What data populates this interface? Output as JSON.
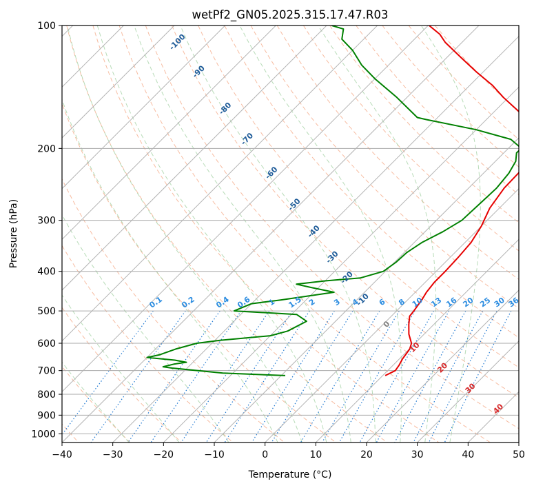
{
  "chart_data": {
    "type": "line",
    "subtype": "skew-t log-p diagram",
    "title": "wetPf2_GN05.2025.315.17.47.R03",
    "xlabel": "Temperature (°C)",
    "ylabel": "Pressure (hPa)",
    "xlim": [
      -40,
      50
    ],
    "ylim": [
      1050,
      100
    ],
    "y_scale": "log",
    "x_ticks": [
      -40,
      -30,
      -20,
      -10,
      0,
      10,
      20,
      30,
      40,
      50
    ],
    "y_ticks": [
      100,
      200,
      300,
      400,
      500,
      600,
      700,
      800,
      900,
      1000
    ],
    "grid": true,
    "series": [
      {
        "role": "temperature",
        "color": "#e60000",
        "points": [
          {
            "p": 720,
            "t": 10.5
          },
          {
            "p": 700,
            "t": 11.5
          },
          {
            "p": 680,
            "t": 11.2
          },
          {
            "p": 655,
            "t": 10.6
          },
          {
            "p": 620,
            "t": 10.1
          },
          {
            "p": 600,
            "t": 9.3
          },
          {
            "p": 570,
            "t": 7.0
          },
          {
            "p": 540,
            "t": 5.1
          },
          {
            "p": 515,
            "t": 3.6
          },
          {
            "p": 500,
            "t": 3.4
          },
          {
            "p": 470,
            "t": 2.8
          },
          {
            "p": 450,
            "t": 2.2
          },
          {
            "p": 425,
            "t": 1.8
          },
          {
            "p": 400,
            "t": 1.8
          },
          {
            "p": 370,
            "t": 1.6
          },
          {
            "p": 340,
            "t": 1.2
          },
          {
            "p": 310,
            "t": 0.0
          },
          {
            "p": 280,
            "t": -1.9
          },
          {
            "p": 250,
            "t": -3.0
          },
          {
            "p": 220,
            "t": -3.2
          },
          {
            "p": 200,
            "t": -4.0
          },
          {
            "p": 190,
            "t": -6.5
          },
          {
            "p": 170,
            "t": -11.8
          },
          {
            "p": 160,
            "t": -16.3
          },
          {
            "p": 150,
            "t": -21.0
          },
          {
            "p": 140,
            "t": -25.6
          },
          {
            "p": 130,
            "t": -31.3
          },
          {
            "p": 120,
            "t": -37.1
          },
          {
            "p": 110,
            "t": -43.3
          },
          {
            "p": 105,
            "t": -46.0
          },
          {
            "p": 100,
            "t": -49.8
          }
        ]
      },
      {
        "role": "dewpoint",
        "color": "#008000",
        "points": [
          {
            "p": 720,
            "t": -9.2
          },
          {
            "p": 710,
            "t": -22.0
          },
          {
            "p": 690,
            "t": -33.0
          },
          {
            "p": 685,
            "t": -35.0
          },
          {
            "p": 675,
            "t": -33.4
          },
          {
            "p": 668,
            "t": -31.3
          },
          {
            "p": 660,
            "t": -34.0
          },
          {
            "p": 650,
            "t": -40.0
          },
          {
            "p": 640,
            "t": -38.0
          },
          {
            "p": 620,
            "t": -36.0
          },
          {
            "p": 600,
            "t": -33.0
          },
          {
            "p": 590,
            "t": -29.0
          },
          {
            "p": 575,
            "t": -20.0
          },
          {
            "p": 560,
            "t": -17.5
          },
          {
            "p": 530,
            "t": -15.7
          },
          {
            "p": 510,
            "t": -19.0
          },
          {
            "p": 500,
            "t": -32.0
          },
          {
            "p": 480,
            "t": -30.0
          },
          {
            "p": 470,
            "t": -25.0
          },
          {
            "p": 450,
            "t": -16.0
          },
          {
            "p": 438,
            "t": -21.5
          },
          {
            "p": 430,
            "t": -25.0
          },
          {
            "p": 422,
            "t": -20.0
          },
          {
            "p": 415,
            "t": -13.6
          },
          {
            "p": 400,
            "t": -10.4
          },
          {
            "p": 380,
            "t": -9.7
          },
          {
            "p": 360,
            "t": -9.5
          },
          {
            "p": 340,
            "t": -8.5
          },
          {
            "p": 320,
            "t": -6.5
          },
          {
            "p": 300,
            "t": -5.0
          },
          {
            "p": 270,
            "t": -4.7
          },
          {
            "p": 250,
            "t": -4.5
          },
          {
            "p": 230,
            "t": -5.0
          },
          {
            "p": 215,
            "t": -6.0
          },
          {
            "p": 205,
            "t": -7.5
          },
          {
            "p": 200,
            "t": -7.4
          },
          {
            "p": 190,
            "t": -11.3
          },
          {
            "p": 180,
            "t": -20.0
          },
          {
            "p": 170,
            "t": -31.8
          },
          {
            "p": 168,
            "t": -34.0
          },
          {
            "p": 150,
            "t": -42.0
          },
          {
            "p": 135,
            "t": -50.0
          },
          {
            "p": 125,
            "t": -55.3
          },
          {
            "p": 115,
            "t": -60.0
          },
          {
            "p": 108,
            "t": -64.3
          },
          {
            "p": 102,
            "t": -66.0
          },
          {
            "p": 100,
            "t": -69.0
          }
        ]
      }
    ],
    "background": {
      "isotherms_c": [
        -140,
        -130,
        -120,
        -110,
        -100,
        -90,
        -80,
        -70,
        -60,
        -50,
        -40,
        -30,
        -20,
        -10,
        0,
        10,
        20,
        30,
        40,
        50
      ],
      "dry_adiabats_c": [
        -50,
        -40,
        -30,
        -20,
        -10,
        0,
        10,
        20,
        30,
        40,
        50,
        60,
        70,
        80,
        90,
        100,
        110,
        120,
        130,
        140,
        150,
        160
      ],
      "moist_adiabats_c": [
        -30,
        -20,
        -10,
        0,
        5,
        10,
        15,
        20,
        25,
        30,
        35
      ],
      "mixing_ratios_g_kg": [
        0.1,
        0.2,
        0.4,
        0.6,
        1,
        1.5,
        2,
        3,
        4,
        6,
        8,
        10,
        13,
        16,
        20,
        25,
        30,
        36
      ],
      "mixing_ratio_labels": [
        "0.1",
        "0.2",
        "0.4",
        "0.6",
        "1",
        "1.5",
        "2",
        "3",
        "4",
        "6",
        "8",
        "10",
        "13",
        "16",
        "20",
        "25",
        "30",
        "36"
      ],
      "frost_point_labels": [
        {
          "text": "-100",
          "p": 110
        },
        {
          "text": "-90",
          "p": 130
        },
        {
          "text": "-80",
          "p": 160
        },
        {
          "text": "-70",
          "p": 190
        },
        {
          "text": "-60",
          "p": 230
        },
        {
          "text": "-50",
          "p": 275
        },
        {
          "text": "-40",
          "p": 320
        },
        {
          "text": "-30",
          "p": 370
        },
        {
          "text": "-20",
          "p": 415
        },
        {
          "text": "-10",
          "p": 470
        }
      ],
      "wetbulb_labels": [
        {
          "text": "0",
          "p": 540,
          "t": 24.0
        },
        {
          "text": "10",
          "p": 615,
          "t": 29.5
        },
        {
          "text": "20",
          "p": 690,
          "t": 35.0
        },
        {
          "text": "30",
          "p": 775,
          "t": 40.5
        },
        {
          "text": "40",
          "p": 870,
          "t": 46.0
        }
      ],
      "colors": {
        "isotherm": "#b4b4b4",
        "isobar": "#aaaaaa",
        "dry_adiabat": "#f4a582",
        "moist_adiabat": "#98cc98",
        "mixing_ratio": "#1f78d1",
        "frost_label": "#1f5c99",
        "mixing_label": "#2b8ce0",
        "wetbulb_label": "#d62728",
        "wetbulb_zero_label": "#808080",
        "ice_curve": "#d9c3a0"
      }
    }
  }
}
